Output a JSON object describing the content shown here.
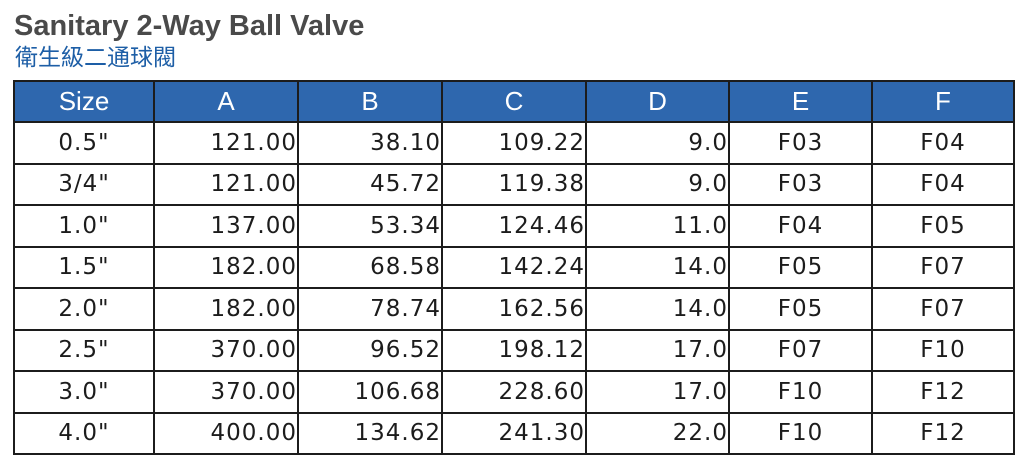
{
  "title": "Sanitary 2-Way Ball Valve",
  "subtitle": "衛生級二通球閥",
  "colors": {
    "header_background": "#2e67ae",
    "header_text": "#ffffff",
    "subtitle_text": "#1d5ea6",
    "title_text": "#4a4a4a",
    "grid_lines": "#1c1c1c"
  },
  "table": {
    "headers": [
      "Size",
      "A",
      "B",
      "C",
      "D",
      "E",
      "F"
    ],
    "rows": [
      [
        "0.5\"",
        "121.00",
        "38.10",
        "109.22",
        "9.0",
        "F03",
        "F04"
      ],
      [
        "3/4\"",
        "121.00",
        "45.72",
        "119.38",
        "9.0",
        "F03",
        "F04"
      ],
      [
        "1.0\"",
        "137.00",
        "53.34",
        "124.46",
        "11.0",
        "F04",
        "F05"
      ],
      [
        "1.5\"",
        "182.00",
        "68.58",
        "142.24",
        "14.0",
        "F05",
        "F07"
      ],
      [
        "2.0\"",
        "182.00",
        "78.74",
        "162.56",
        "14.0",
        "F05",
        "F07"
      ],
      [
        "2.5\"",
        "370.00",
        "96.52",
        "198.12",
        "17.0",
        "F07",
        "F10"
      ],
      [
        "3.0\"",
        "370.00",
        "106.68",
        "228.60",
        "17.0",
        "F10",
        "F12"
      ],
      [
        "4.0\"",
        "400.00",
        "134.62",
        "241.30",
        "22.0",
        "F10",
        "F12"
      ]
    ]
  }
}
